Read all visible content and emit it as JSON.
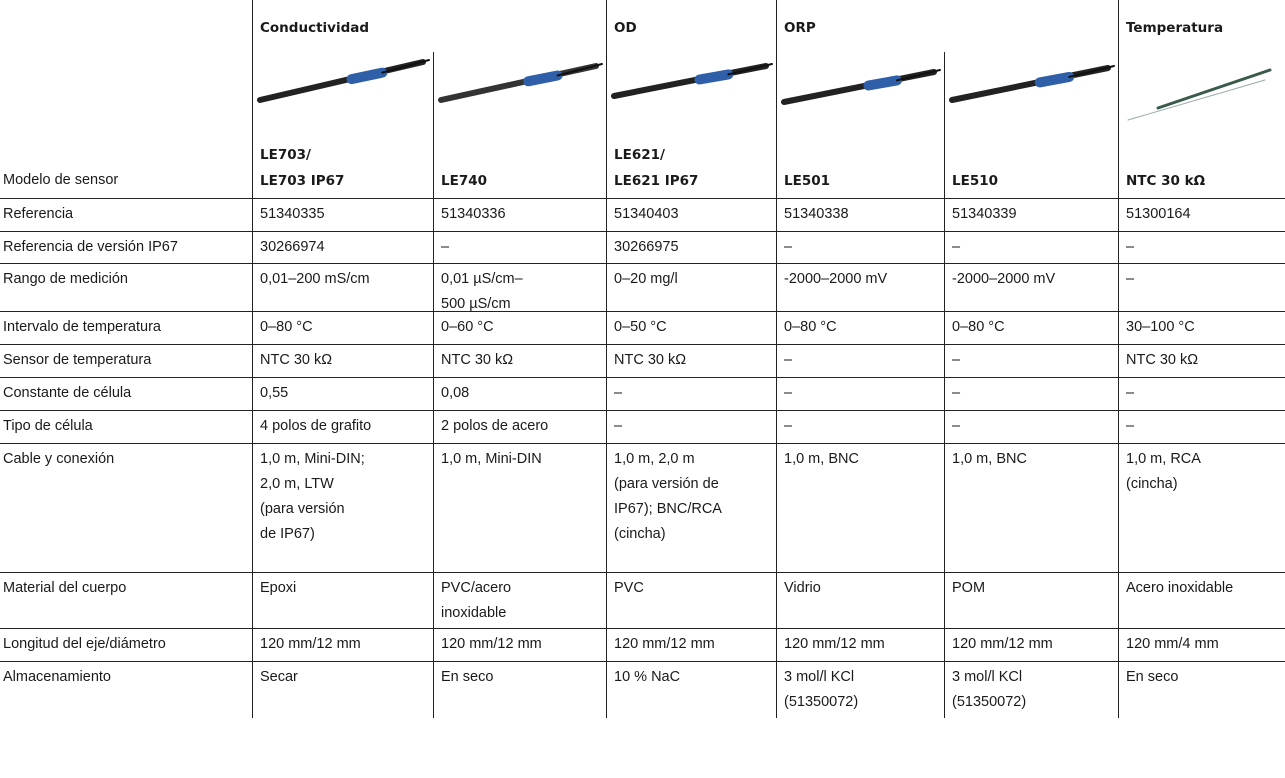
{
  "header": {
    "groups": [
      "Conductividad",
      "OD",
      "ORP",
      "Temperatura"
    ],
    "row_label": "Modelo de sensor",
    "models": [
      "LE703/\nLE703 IP67",
      "LE740",
      "LE621/\nLE621 IP67",
      "LE501",
      "LE510",
      "NTC 30 kΩ"
    ]
  },
  "table": {
    "rows": [
      {
        "label": "Referencia",
        "cells": [
          "51340335",
          "51340336",
          "51340403",
          "51340338",
          "51340339",
          "51300164"
        ]
      },
      {
        "label": "Referencia de versión IP67",
        "cells": [
          "30266974",
          "–",
          "30266975",
          "–",
          "–",
          "–"
        ]
      },
      {
        "label": "Rango de medición",
        "cells": [
          "0,01–200 mS/cm",
          "0,01 µS/cm–\n500 µS/cm",
          "0–20 mg/l",
          "-2000–2000 mV",
          "-2000–2000 mV",
          "–"
        ]
      },
      {
        "label": "Intervalo de temperatura",
        "cells": [
          "0–80 °C",
          "0–60 °C",
          "0–50 °C",
          "0–80 °C",
          "0–80 °C",
          "30–100 °C"
        ]
      },
      {
        "label": "Sensor de temperatura",
        "cells": [
          "NTC 30 kΩ",
          "NTC 30 kΩ",
          "NTC 30 kΩ",
          "–",
          "–",
          "NTC 30 kΩ"
        ]
      },
      {
        "label": "Constante de célula",
        "cells": [
          "0,55",
          "0,08",
          "–",
          "–",
          "–",
          "–"
        ]
      },
      {
        "label": "Tipo de célula",
        "cells": [
          "4 polos de grafito",
          "2 polos de acero",
          "–",
          "–",
          "–",
          "–"
        ]
      },
      {
        "label": "Cable y conexión",
        "cells": [
          "1,0 m, Mini-DIN;\n2,0 m, LTW\n(para versión\nde IP67)",
          "1,0 m, Mini-DIN",
          "1,0 m, 2,0 m\n(para versión de\nIP67); BNC/RCA\n(cincha)",
          "1,0 m, BNC",
          "1,0 m, BNC",
          "1,0 m, RCA\n(cincha)"
        ]
      },
      {
        "label": "Material del cuerpo",
        "cells": [
          "Epoxi",
          "PVC/acero\ninoxidable",
          "PVC",
          "Vidrio",
          "POM",
          "Acero inoxidable"
        ]
      },
      {
        "label": "Longitud del eje/diámetro",
        "cells": [
          "120 mm/12 mm",
          "120 mm/12 mm",
          "120 mm/12 mm",
          "120 mm/12 mm",
          "120 mm/12 mm",
          "120 mm/4 mm"
        ]
      },
      {
        "label": "Almacenamiento",
        "cells": [
          "Secar",
          "En seco",
          "10 % NaC",
          "3 mol/l KCl\n(51350072)",
          "3 mol/l KCl\n(51350072)",
          "En seco"
        ]
      }
    ]
  }
}
